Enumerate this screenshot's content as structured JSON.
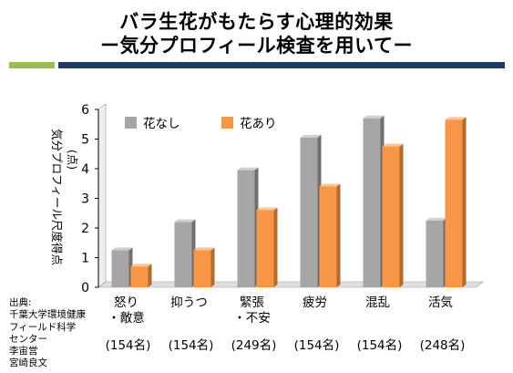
{
  "title": {
    "line1": "バラ生花がもたらす心理的効果",
    "line2": "ー気分プロフィール検査を用いてー"
  },
  "colors": {
    "band_green": "#9bbb59",
    "band_navy": "#1f3864",
    "series_without": "#a6a6a6",
    "series_with": "#f79646"
  },
  "source": {
    "label": "出典:",
    "lines": [
      "千葉大学環境健康",
      "フィールド科学",
      "センター",
      "李宙営",
      "宮崎良文"
    ]
  },
  "chart_data": {
    "type": "bar",
    "ylabel": "気分プロフィール尺度得点",
    "ylabel_unit": "(点)",
    "ylim": [
      0,
      6
    ],
    "yticks": [
      "0",
      "1",
      "2",
      "3",
      "4",
      "5",
      "6"
    ],
    "grid": false,
    "legend_position": "top-left",
    "categories": [
      {
        "lines": [
          "怒り",
          "・敵意"
        ],
        "n": "(154名)"
      },
      {
        "lines": [
          "抑うつ"
        ],
        "n": "(154名)"
      },
      {
        "lines": [
          "緊張",
          "・不安"
        ],
        "n": "(249名)"
      },
      {
        "lines": [
          "疲労"
        ],
        "n": "(154名)"
      },
      {
        "lines": [
          "混乱"
        ],
        "n": "(154名)"
      },
      {
        "lines": [
          "活気"
        ],
        "n": "(248名)"
      }
    ],
    "series": [
      {
        "name": "花なし",
        "values": [
          1.25,
          2.2,
          3.95,
          5.05,
          5.7,
          2.25
        ]
      },
      {
        "name": "花あり",
        "values": [
          0.7,
          1.25,
          2.6,
          3.4,
          4.75,
          5.65
        ]
      }
    ]
  }
}
